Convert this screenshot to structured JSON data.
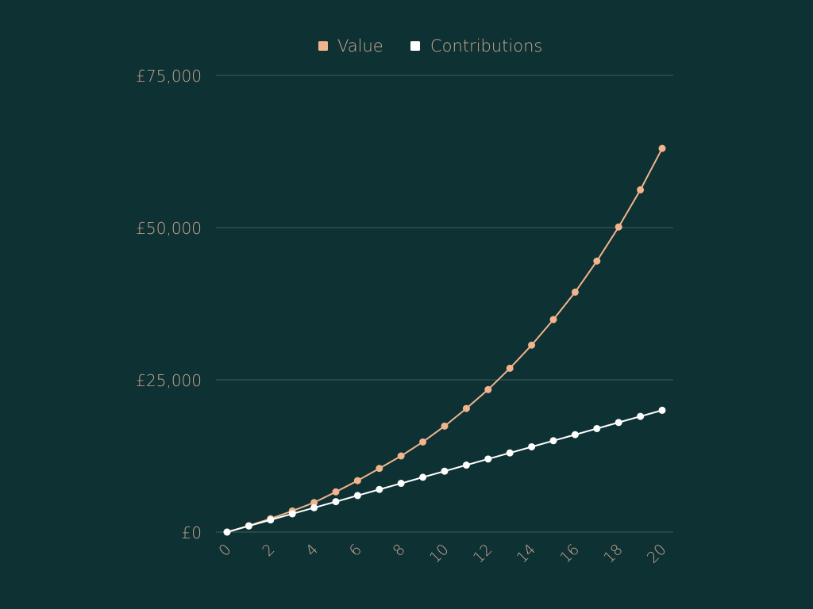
{
  "chart_data": {
    "type": "line",
    "title": "",
    "xlabel": "",
    "ylabel": "",
    "x": [
      0,
      1,
      2,
      3,
      4,
      5,
      6,
      7,
      8,
      9,
      10,
      11,
      12,
      13,
      14,
      15,
      16,
      17,
      18,
      19,
      20
    ],
    "xticks": [
      "0",
      "2",
      "4",
      "6",
      "8",
      "10",
      "12",
      "14",
      "16",
      "18",
      "20"
    ],
    "ylim": [
      0,
      75000
    ],
    "yticks": [
      "£0",
      "£25,000",
      "£50,000",
      "£75,000"
    ],
    "ytick_values": [
      0,
      25000,
      50000,
      75000
    ],
    "grid": true,
    "legend_position": "top-center",
    "series": [
      {
        "name": "Value",
        "color": "#f2b48c",
        "values": [
          0,
          1050,
          2205,
          3470,
          4850,
          6600,
          8450,
          10450,
          12500,
          14800,
          17400,
          20300,
          23400,
          26900,
          30700,
          34900,
          39400,
          44500,
          50100,
          56200,
          63000
        ]
      },
      {
        "name": "Contributions",
        "color": "#ffffff",
        "values": [
          0,
          1000,
          2000,
          3000,
          4000,
          5000,
          6000,
          7000,
          8000,
          9000,
          10000,
          11000,
          12000,
          13000,
          14000,
          15000,
          16000,
          17000,
          18000,
          19000,
          20000
        ]
      }
    ]
  },
  "colors": {
    "background": "#0e3134",
    "grid": "#3a5552",
    "tick_text": "#c9a88f"
  }
}
